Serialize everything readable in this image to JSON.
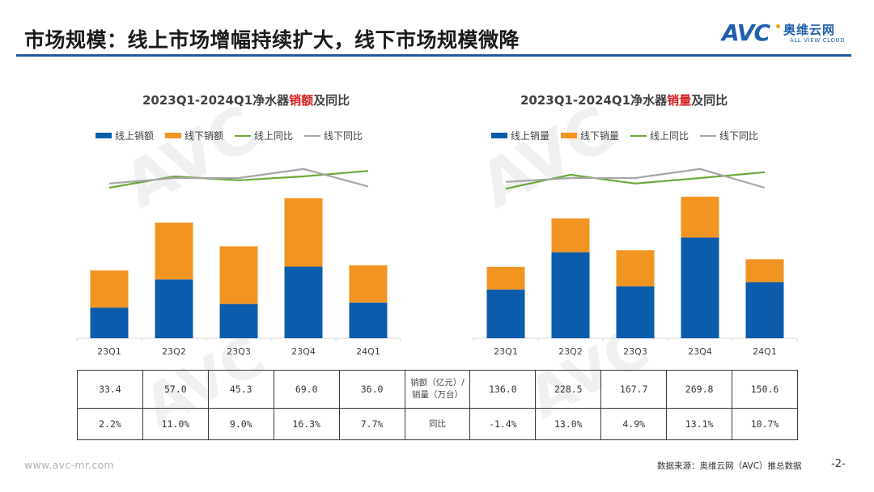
{
  "header": {
    "title": "市场规模：线上市场增幅持续扩大，线下市场规模微降",
    "logo_text": "AVC",
    "logo_cn": "奥维云网",
    "logo_en": "ALL VIEW CLOUD"
  },
  "colors": {
    "online_bar": "#0b5cad",
    "offline_bar": "#f29422",
    "online_line": "#6aaa3a",
    "offline_line": "#a6a6a6",
    "title_rule": "#1f5a9e",
    "highlight": "#d42020"
  },
  "charts": {
    "left": {
      "title_prefix": "2023Q1-2024Q1净水器",
      "title_highlight": "销额",
      "title_suffix": "及同比",
      "legend": [
        "线上销额",
        "线下销额",
        "线上同比",
        "线下同比"
      ]
    },
    "right": {
      "title_prefix": "2023Q1-2024Q1净水器",
      "title_highlight": "销量",
      "title_suffix": "及同比",
      "legend": [
        "线上销量",
        "线下销量",
        "线上同比",
        "线下同比"
      ]
    }
  },
  "chart_data": [
    {
      "type": "bar",
      "stacked": true,
      "title": "2023Q1-2024Q1净水器销额及同比",
      "categories": [
        "23Q1",
        "23Q2",
        "23Q3",
        "23Q4",
        "24Q1"
      ],
      "series": [
        {
          "name": "线上销额",
          "kind": "bar",
          "values": [
            15.1,
            29.0,
            16.9,
            35.3,
            17.6
          ]
        },
        {
          "name": "线下销额",
          "kind": "bar",
          "values": [
            18.3,
            28.0,
            28.4,
            33.7,
            18.4
          ]
        },
        {
          "name": "线上同比",
          "kind": "line",
          "axis": "secondary",
          "values": [
            0.2,
            0.55,
            0.43,
            0.55,
            0.72
          ]
        },
        {
          "name": "线下同比",
          "kind": "line",
          "axis": "secondary",
          "values": [
            0.33,
            0.5,
            0.5,
            0.78,
            0.24
          ]
        }
      ],
      "totals": [
        33.4,
        57.0,
        45.3,
        69.0,
        36.0
      ],
      "ylim": [
        0,
        75
      ],
      "secondary_ylim": [
        -2,
        2
      ],
      "legend_position": "top",
      "grid": false
    },
    {
      "type": "bar",
      "stacked": true,
      "title": "2023Q1-2024Q1净水器销量及同比",
      "categories": [
        "23Q1",
        "23Q2",
        "23Q3",
        "23Q4",
        "24Q1"
      ],
      "series": [
        {
          "name": "线上销量",
          "kind": "bar",
          "values": [
            93,
            164,
            99,
            192,
            107
          ]
        },
        {
          "name": "线下销量",
          "kind": "bar",
          "values": [
            43,
            64.5,
            68.7,
            77.8,
            43.6
          ]
        },
        {
          "name": "线上同比",
          "kind": "line",
          "axis": "secondary",
          "values": [
            0.17,
            0.6,
            0.33,
            0.5,
            0.68
          ]
        },
        {
          "name": "线下同比",
          "kind": "line",
          "axis": "secondary",
          "values": [
            0.38,
            0.5,
            0.5,
            0.78,
            0.2
          ]
        }
      ],
      "totals": [
        136.0,
        228.5,
        167.7,
        269.8,
        150.6
      ],
      "ylim": [
        0,
        290
      ],
      "secondary_ylim": [
        -2,
        2
      ],
      "legend_position": "top",
      "grid": false
    }
  ],
  "table": {
    "row1_left": [
      "33.4",
      "57.0",
      "45.3",
      "69.0",
      "36.0"
    ],
    "row1_label_line1": "销额（亿元）/",
    "row1_label_line2": "销量（万台）",
    "row1_right": [
      "136.0",
      "228.5",
      "167.7",
      "269.8",
      "150.6"
    ],
    "row2_left": [
      "2.2%",
      "11.0%",
      "9.0%",
      "16.3%",
      "7.7%"
    ],
    "row2_label": "同比",
    "row2_right": [
      "-1.4%",
      "13.0%",
      "4.9%",
      "13.1%",
      "10.7%"
    ]
  },
  "footer": {
    "url": "www.avc-mr.com",
    "source": "数据来源：奥维云网（AVC）推总数据",
    "page": "-2-"
  }
}
